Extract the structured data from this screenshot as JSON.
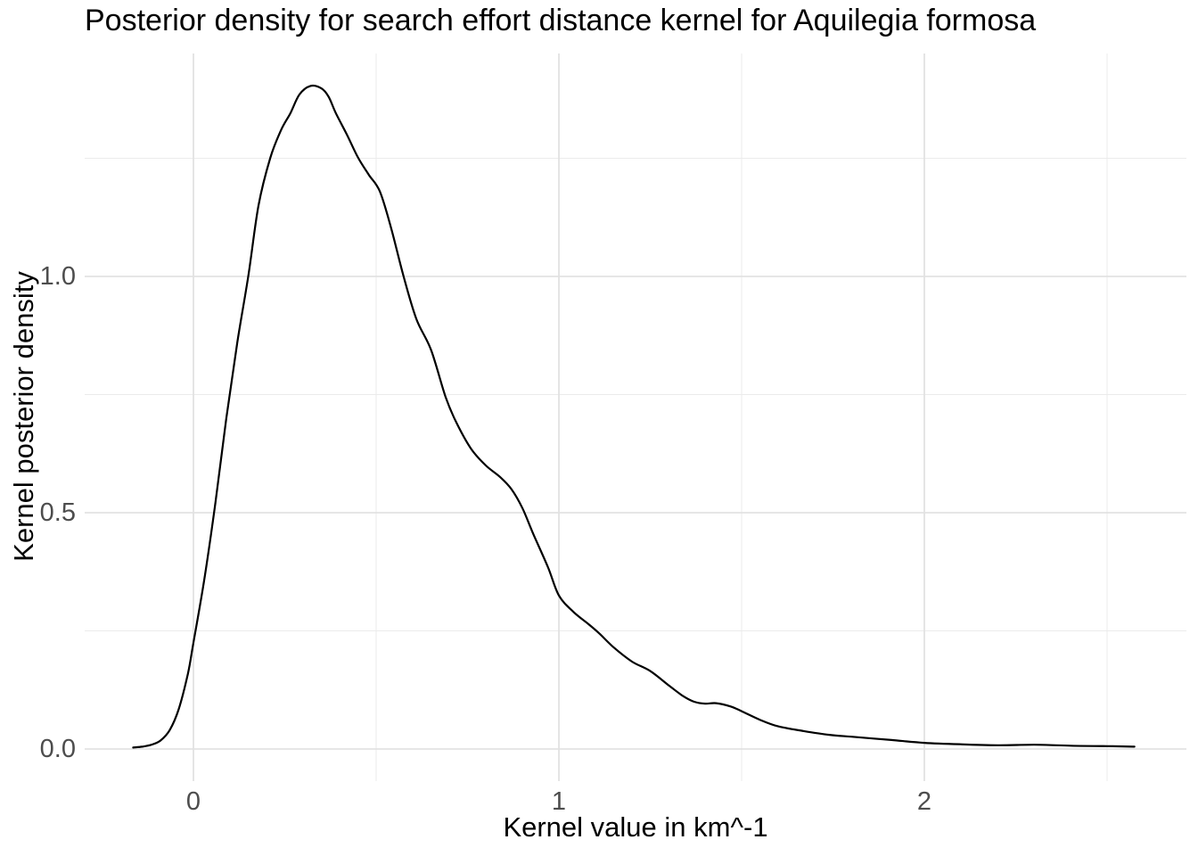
{
  "chart_data": {
    "type": "line",
    "subtype": "kernel-density",
    "title": "Posterior density for search effort distance kernel for Aquilegia formosa",
    "xlabel": "Kernel value in km^-1",
    "ylabel": "Kernel posterior density",
    "xlim": [
      -0.2976,
      2.7171
    ],
    "ylim": [
      -0.0679,
      1.4717
    ],
    "x_ticks": [
      {
        "value": 0,
        "label": "0"
      },
      {
        "value": 1,
        "label": "1"
      },
      {
        "value": 2,
        "label": "2"
      }
    ],
    "y_ticks": [
      {
        "value": 0.0,
        "label": "0.0"
      },
      {
        "value": 0.5,
        "label": "0.5"
      },
      {
        "value": 1.0,
        "label": "1.0"
      }
    ],
    "x_minor_ticks": [
      0.5,
      1.5,
      2.5
    ],
    "y_minor_ticks": [
      0.25,
      0.75,
      1.25
    ],
    "grid": true,
    "legend": false,
    "colors": {
      "line": "#000000",
      "grid_major": "#E2E2E2",
      "grid_minor": "#EBEBEB",
      "tick_label": "#4D4D4D",
      "text": "#000000",
      "background": "#FFFFFF"
    },
    "series": [
      {
        "name": "posterior density",
        "points": [
          [
            -0.165,
            0.003
          ],
          [
            -0.14,
            0.005
          ],
          [
            -0.115,
            0.009
          ],
          [
            -0.09,
            0.018
          ],
          [
            -0.065,
            0.04
          ],
          [
            -0.04,
            0.085
          ],
          [
            -0.015,
            0.16
          ],
          [
            0.0,
            0.225
          ],
          [
            0.03,
            0.36
          ],
          [
            0.06,
            0.52
          ],
          [
            0.09,
            0.7
          ],
          [
            0.12,
            0.86
          ],
          [
            0.15,
            1.0
          ],
          [
            0.178,
            1.15
          ],
          [
            0.21,
            1.25
          ],
          [
            0.24,
            1.31
          ],
          [
            0.265,
            1.345
          ],
          [
            0.29,
            1.385
          ],
          [
            0.32,
            1.403
          ],
          [
            0.35,
            1.398
          ],
          [
            0.37,
            1.38
          ],
          [
            0.39,
            1.345
          ],
          [
            0.42,
            1.3
          ],
          [
            0.45,
            1.252
          ],
          [
            0.48,
            1.215
          ],
          [
            0.51,
            1.18
          ],
          [
            0.54,
            1.105
          ],
          [
            0.575,
            1.0
          ],
          [
            0.61,
            0.91
          ],
          [
            0.65,
            0.845
          ],
          [
            0.69,
            0.745
          ],
          [
            0.72,
            0.69
          ],
          [
            0.76,
            0.635
          ],
          [
            0.8,
            0.6
          ],
          [
            0.84,
            0.575
          ],
          [
            0.87,
            0.55
          ],
          [
            0.9,
            0.51
          ],
          [
            0.93,
            0.455
          ],
          [
            0.97,
            0.385
          ],
          [
            1.0,
            0.325
          ],
          [
            1.04,
            0.29
          ],
          [
            1.08,
            0.265
          ],
          [
            1.11,
            0.245
          ],
          [
            1.15,
            0.215
          ],
          [
            1.2,
            0.185
          ],
          [
            1.25,
            0.165
          ],
          [
            1.3,
            0.135
          ],
          [
            1.34,
            0.112
          ],
          [
            1.37,
            0.1
          ],
          [
            1.4,
            0.096
          ],
          [
            1.43,
            0.097
          ],
          [
            1.47,
            0.09
          ],
          [
            1.5,
            0.08
          ],
          [
            1.55,
            0.062
          ],
          [
            1.6,
            0.048
          ],
          [
            1.67,
            0.038
          ],
          [
            1.74,
            0.03
          ],
          [
            1.8,
            0.026
          ],
          [
            1.91,
            0.019
          ],
          [
            2.0,
            0.013
          ],
          [
            2.1,
            0.01
          ],
          [
            2.2,
            0.008
          ],
          [
            2.3,
            0.009
          ],
          [
            2.4,
            0.007
          ],
          [
            2.5,
            0.006
          ],
          [
            2.575,
            0.005
          ]
        ]
      }
    ]
  }
}
